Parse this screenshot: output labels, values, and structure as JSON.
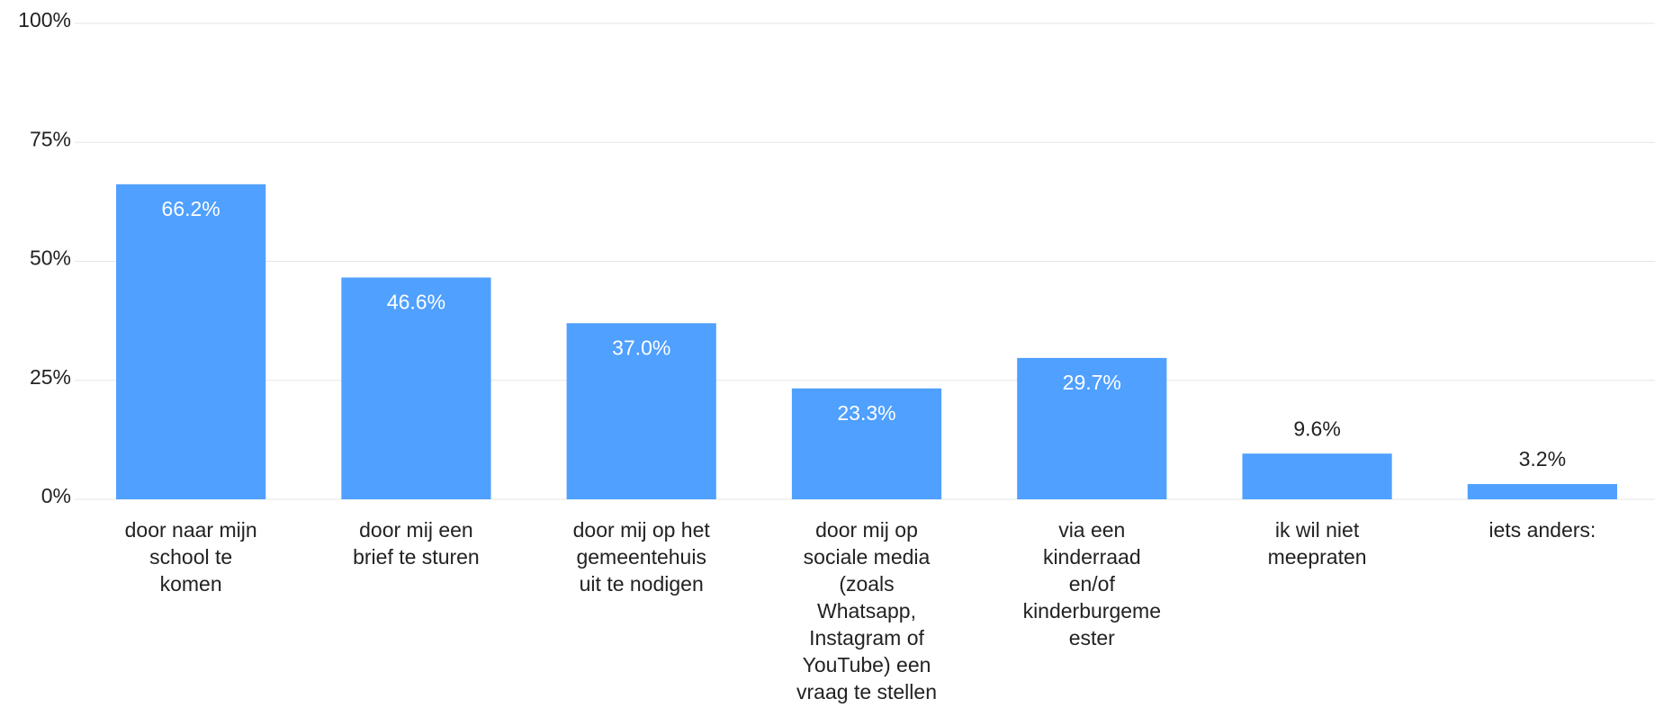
{
  "chart_data": {
    "type": "bar",
    "categories": [
      [
        "door naar mijn",
        "school te",
        "komen"
      ],
      [
        "door mij een",
        "brief te sturen"
      ],
      [
        "door mij op het",
        "gemeentehuis",
        "uit te nodigen"
      ],
      [
        "door mij op",
        "sociale media",
        "(zoals",
        "Whatsapp,",
        "Instagram of",
        "YouTube) een",
        "vraag te stellen"
      ],
      [
        "via een",
        "kinderraad",
        "en/of",
        "kinderburgeme",
        "ester"
      ],
      [
        "ik wil niet",
        "meepraten"
      ],
      [
        "iets anders:"
      ]
    ],
    "values": [
      66.2,
      46.6,
      37.0,
      23.3,
      29.7,
      9.6,
      3.2
    ],
    "value_labels": [
      "66.2%",
      "46.6%",
      "37.0%",
      "23.3%",
      "29.7%",
      "9.6%",
      "3.2%"
    ],
    "color": "#4fa0ff",
    "ylim": [
      0,
      100
    ],
    "yticks": [
      {
        "value": 0,
        "label": "0%"
      },
      {
        "value": 25,
        "label": "25%"
      },
      {
        "value": 50,
        "label": "50%"
      },
      {
        "value": 75,
        "label": "75%"
      },
      {
        "value": 100,
        "label": "100%"
      }
    ],
    "grid": true
  }
}
